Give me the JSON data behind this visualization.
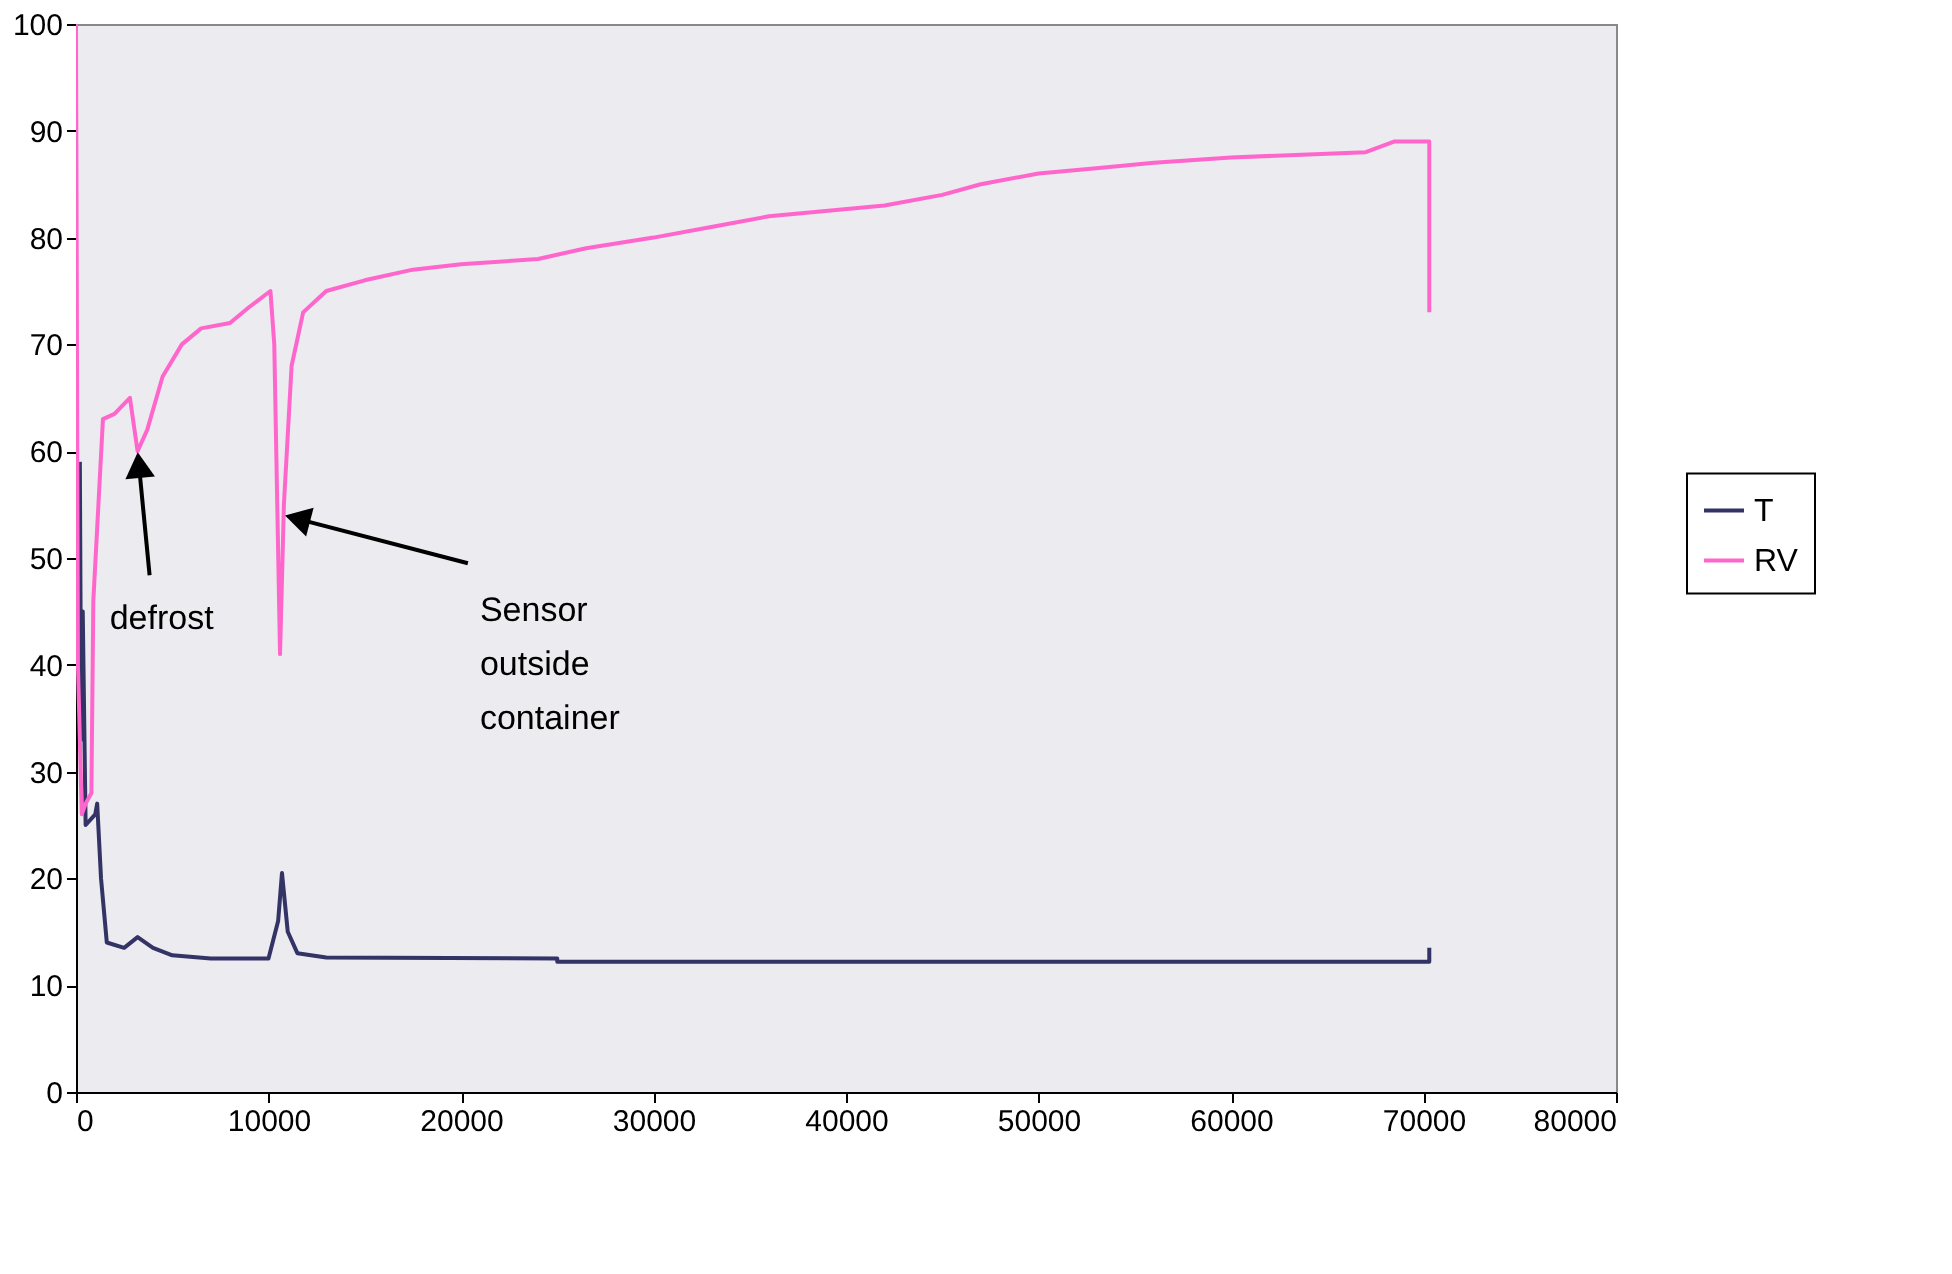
{
  "chart_data": {
    "type": "line",
    "xlim": [
      0,
      80000
    ],
    "xticks": [
      0,
      10000,
      20000,
      30000,
      40000,
      50000,
      60000,
      70000,
      80000
    ],
    "ylim": [
      0,
      100
    ],
    "yticks": [
      0,
      10,
      20,
      30,
      40,
      50,
      60,
      70,
      80,
      90,
      100
    ],
    "grid": false,
    "legend": "right",
    "marker": "none",
    "line_style": "solid",
    "series": [
      {
        "name": "T",
        "color": "#333366",
        "x": [
          200,
          250,
          300,
          350,
          500,
          1000,
          1100,
          1300,
          1600,
          2500,
          3200,
          4000,
          5000,
          7000,
          10000,
          10500,
          10700,
          11000,
          11500,
          13000,
          25000,
          25000,
          70300,
          70300
        ],
        "values": [
          59,
          40,
          33,
          45,
          25,
          26,
          27,
          20,
          14,
          13.5,
          14.5,
          13.5,
          12.8,
          12.5,
          12.5,
          16,
          20.5,
          15,
          13,
          12.6,
          12.5,
          12.2,
          12.2,
          13.5
        ]
      },
      {
        "name": "RV",
        "color": "#ff66cc",
        "x": [
          0,
          100,
          300,
          500,
          800,
          900,
          1400,
          2000,
          2800,
          3200,
          3700,
          4500,
          5500,
          6500,
          8000,
          9000,
          10100,
          10300,
          10600,
          10800,
          11200,
          11800,
          13000,
          15000,
          17500,
          20000,
          24000,
          26500,
          30000,
          33000,
          36000,
          42000,
          45000,
          47000,
          50000,
          53000,
          56000,
          60000,
          67000,
          68500,
          70300,
          70300
        ],
        "values": [
          100,
          40,
          26,
          27,
          28,
          46,
          63,
          63.5,
          65,
          60,
          62,
          67,
          70,
          71.5,
          72,
          73.5,
          75,
          70,
          41,
          55,
          68,
          73,
          75,
          76,
          77,
          77.5,
          78,
          79,
          80,
          81,
          82,
          83,
          84,
          85,
          86,
          86.5,
          87,
          87.5,
          88,
          89,
          89,
          73
        ]
      }
    ],
    "annotations": [
      {
        "text": "defrost",
        "x": 3200,
        "y": 60
      },
      {
        "text": "Sensor outside container",
        "x": 10800,
        "y": 54
      }
    ]
  }
}
